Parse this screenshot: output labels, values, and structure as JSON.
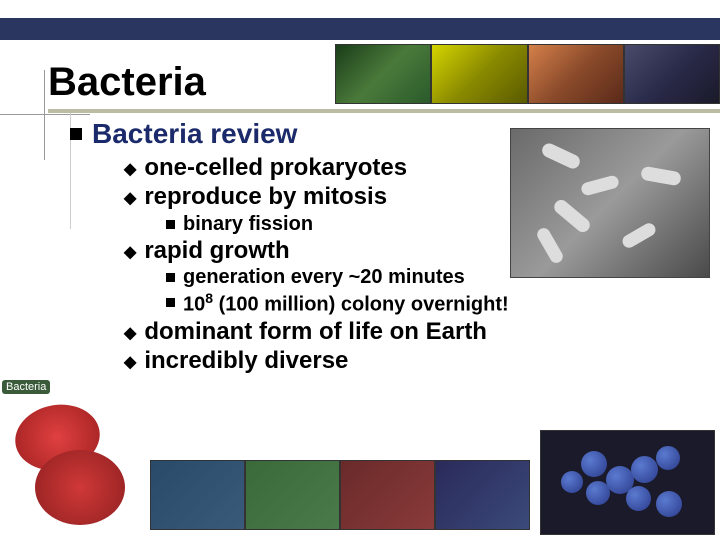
{
  "slide": {
    "title": "Bacteria",
    "heading": "Bacteria review",
    "bullets": [
      {
        "text": "one-celled prokaryotes"
      },
      {
        "text": "reproduce by mitosis"
      },
      {
        "text": "binary fission",
        "sub": true
      },
      {
        "text": "rapid growth"
      },
      {
        "text": "generation every ~20 minutes",
        "sub": true
      },
      {
        "html": "10<sup>8</sup> (100 million) colony overnight!",
        "sub": true
      },
      {
        "text": "dominant form of life on Earth"
      },
      {
        "text": "incredibly diverse"
      }
    ],
    "bottom_label": "Bacteria"
  },
  "colors": {
    "top_bar": "#2a3560",
    "heading": "#1a2a6a",
    "underline": "#bcbca4",
    "body_text": "#000000"
  }
}
